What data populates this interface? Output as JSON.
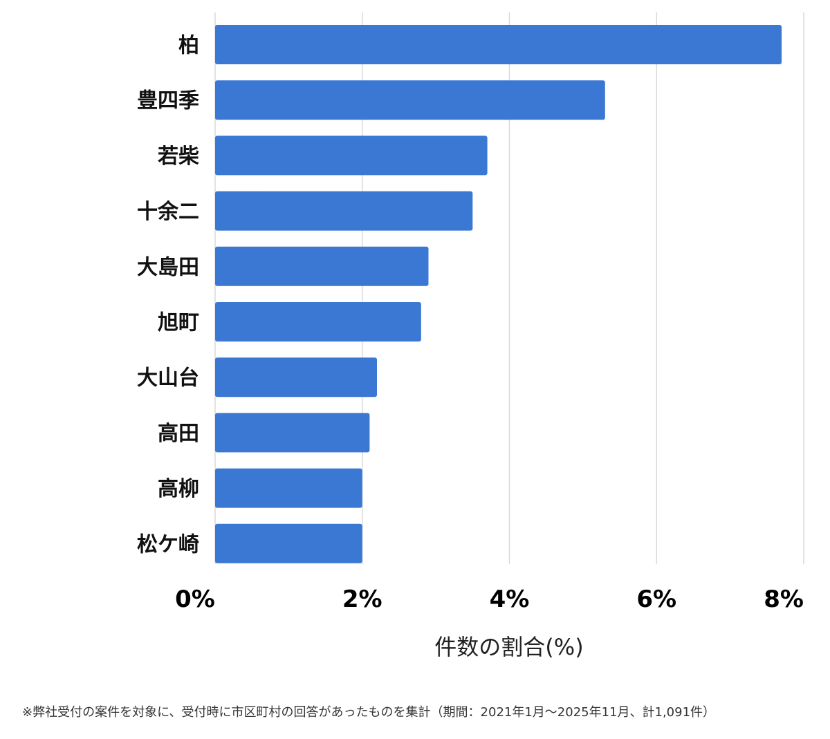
{
  "chart_data": {
    "type": "bar",
    "orientation": "horizontal",
    "categories": [
      "柏",
      "豊四季",
      "若柴",
      "十余二",
      "大島田",
      "旭町",
      "大山台",
      "高田",
      "高柳",
      "松ケ崎"
    ],
    "values": [
      7.7,
      5.3,
      3.7,
      3.5,
      2.9,
      2.8,
      2.2,
      2.1,
      2.0,
      2.0
    ],
    "xlim": [
      0,
      8
    ],
    "xticks": [
      0,
      2,
      4,
      6,
      8
    ],
    "tick_labels": [
      "0%",
      "2%",
      "4%",
      "6%",
      "8%"
    ],
    "xlabel": "件数の割合(%)",
    "ylabel": "",
    "title": "",
    "grid": "vertical",
    "bar_color": "#3b78d4",
    "grid_color": "#d9d9d9"
  },
  "footnote": "※弊社受付の案件を対象に、受付時に市区町村の回答があったものを集計（期間：2021年1月～2025年11月、計1,091件）"
}
